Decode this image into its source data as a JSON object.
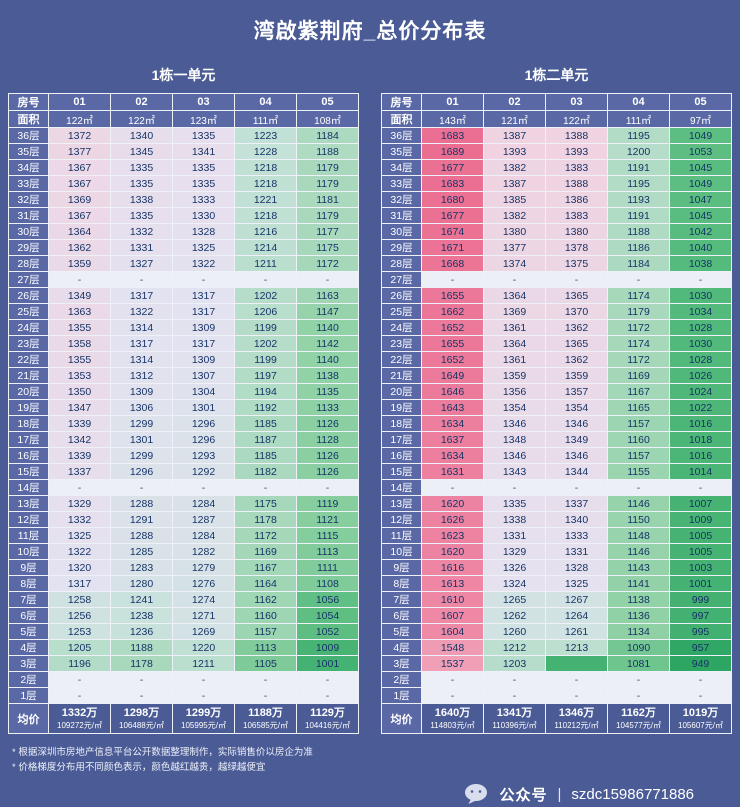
{
  "page": {
    "title": "湾啟紫荆府_总价分布表",
    "bg_color": "#4a5b95",
    "header_cell_color": "#5a69a6",
    "notes": [
      "* 根据深圳市房地产信息平台公开数据整理制作，实际销售价以房企为准",
      "* 价格梯度分布用不同颜色表示，颜色越红越贵，越绿越便宜"
    ],
    "footer": {
      "brand": "公众号",
      "separator": "|",
      "account": "szdc15986771886",
      "icon": "chat-bubble-icon"
    }
  },
  "color_scale": {
    "min_value": 949,
    "max_value": 1689,
    "stops": [
      {
        "t": 0.0,
        "color": "#2da563"
      },
      {
        "t": 0.12,
        "color": "#55bb7c"
      },
      {
        "t": 0.25,
        "color": "#8fd1a4"
      },
      {
        "t": 0.38,
        "color": "#c6e2da"
      },
      {
        "t": 0.5,
        "color": "#e4e2f0"
      },
      {
        "t": 0.62,
        "color": "#f2cfdd"
      },
      {
        "t": 0.8,
        "color": "#f09db6"
      },
      {
        "t": 1.0,
        "color": "#eb6d90"
      }
    ]
  },
  "chart_data": {
    "type": "table",
    "tables": [
      {
        "unit": "1栋一单元",
        "corner_top": "房号",
        "corner_bottom": "面积",
        "avg_label": "均价",
        "rooms": [
          "01",
          "02",
          "03",
          "04",
          "05"
        ],
        "areas": [
          "122㎡",
          "122㎡",
          "123㎡",
          "111㎡",
          "108㎡"
        ],
        "floors": [
          "36层",
          "35层",
          "34层",
          "33层",
          "32层",
          "31层",
          "30层",
          "29层",
          "28层",
          "27层",
          "26层",
          "25层",
          "24层",
          "23层",
          "22层",
          "21层",
          "20层",
          "19层",
          "18层",
          "17层",
          "16层",
          "15层",
          "14层",
          "13层",
          "12层",
          "11层",
          "10层",
          "9层",
          "8层",
          "7层",
          "6层",
          "5层",
          "4层",
          "3层",
          "2层",
          "1层"
        ],
        "rows": [
          [
            1372,
            1340,
            1335,
            1223,
            1184
          ],
          [
            1377,
            1345,
            1341,
            1228,
            1188
          ],
          [
            1367,
            1335,
            1335,
            1218,
            1179
          ],
          [
            1367,
            1335,
            1335,
            1218,
            1179
          ],
          [
            1369,
            1338,
            1333,
            1221,
            1181
          ],
          [
            1367,
            1335,
            1330,
            1218,
            1179
          ],
          [
            1364,
            1332,
            1328,
            1216,
            1177
          ],
          [
            1362,
            1331,
            1325,
            1214,
            1175
          ],
          [
            1359,
            1327,
            1322,
            1211,
            1172
          ],
          [
            "-",
            "-",
            "-",
            "-",
            "-"
          ],
          [
            1349,
            1317,
            1317,
            1202,
            1163
          ],
          [
            1363,
            1322,
            1317,
            1206,
            1147
          ],
          [
            1355,
            1314,
            1309,
            1199,
            1140
          ],
          [
            1358,
            1317,
            1317,
            1202,
            1142
          ],
          [
            1355,
            1314,
            1309,
            1199,
            1140
          ],
          [
            1353,
            1312,
            1307,
            1197,
            1138
          ],
          [
            1350,
            1309,
            1304,
            1194,
            1135
          ],
          [
            1347,
            1306,
            1301,
            1192,
            1133
          ],
          [
            1339,
            1299,
            1296,
            1185,
            1126
          ],
          [
            1342,
            1301,
            1296,
            1187,
            1128
          ],
          [
            1339,
            1299,
            1293,
            1185,
            1126
          ],
          [
            1337,
            1296,
            1292,
            1182,
            1126
          ],
          [
            "-",
            "-",
            "-",
            "-",
            "-"
          ],
          [
            1329,
            1288,
            1284,
            1175,
            1119
          ],
          [
            1332,
            1291,
            1287,
            1178,
            1121
          ],
          [
            1325,
            1288,
            1284,
            1172,
            1115
          ],
          [
            1322,
            1285,
            1282,
            1169,
            1113
          ],
          [
            1320,
            1283,
            1279,
            1167,
            1111
          ],
          [
            1317,
            1280,
            1276,
            1164,
            1108
          ],
          [
            1258,
            1241,
            1274,
            1162,
            1056
          ],
          [
            1256,
            1238,
            1271,
            1160,
            1054
          ],
          [
            1253,
            1236,
            1269,
            1157,
            1052
          ],
          [
            1205,
            1188,
            1220,
            1113,
            1009
          ],
          [
            1196,
            1178,
            1211,
            1105,
            1001
          ],
          [
            "-",
            "-",
            "-",
            "-",
            "-"
          ],
          [
            "-",
            "-",
            "-",
            "-",
            "-"
          ]
        ],
        "averages": [
          {
            "wan": "1332万",
            "per": "109272元/㎡"
          },
          {
            "wan": "1298万",
            "per": "106488元/㎡"
          },
          {
            "wan": "1299万",
            "per": "105995元/㎡"
          },
          {
            "wan": "1188万",
            "per": "106585元/㎡"
          },
          {
            "wan": "1129万",
            "per": "104416元/㎡"
          }
        ]
      },
      {
        "unit": "1栋二单元",
        "corner_top": "房号",
        "corner_bottom": "面积",
        "avg_label": "均价",
        "rooms": [
          "01",
          "02",
          "03",
          "04",
          "05"
        ],
        "areas": [
          "143㎡",
          "121㎡",
          "122㎡",
          "111㎡",
          "97㎡"
        ],
        "floors": [
          "36层",
          "35层",
          "34层",
          "33层",
          "32层",
          "31层",
          "30层",
          "29层",
          "28层",
          "27层",
          "26层",
          "25层",
          "24层",
          "23层",
          "22层",
          "21层",
          "20层",
          "19层",
          "18层",
          "17层",
          "16层",
          "15层",
          "14层",
          "13层",
          "12层",
          "11层",
          "10层",
          "9层",
          "8层",
          "7层",
          "6层",
          "5层",
          "4层",
          "3层",
          "2层",
          "1层"
        ],
        "rows": [
          [
            1683,
            1387,
            1388,
            1195,
            1049
          ],
          [
            1689,
            1393,
            1393,
            1200,
            1053
          ],
          [
            1677,
            1382,
            1383,
            1191,
            1045
          ],
          [
            1683,
            1387,
            1388,
            1195,
            1049
          ],
          [
            1680,
            1385,
            1386,
            1193,
            1047
          ],
          [
            1677,
            1382,
            1383,
            1191,
            1045
          ],
          [
            1674,
            1380,
            1380,
            1188,
            1042
          ],
          [
            1671,
            1377,
            1378,
            1186,
            1040
          ],
          [
            1668,
            1374,
            1375,
            1184,
            1038
          ],
          [
            "-",
            "-",
            "-",
            "-",
            "-"
          ],
          [
            1655,
            1364,
            1365,
            1174,
            1030
          ],
          [
            1662,
            1369,
            1370,
            1179,
            1034
          ],
          [
            1652,
            1361,
            1362,
            1172,
            1028
          ],
          [
            1655,
            1364,
            1365,
            1174,
            1030
          ],
          [
            1652,
            1361,
            1362,
            1172,
            1028
          ],
          [
            1649,
            1359,
            1359,
            1169,
            1026
          ],
          [
            1646,
            1356,
            1357,
            1167,
            1024
          ],
          [
            1643,
            1354,
            1354,
            1165,
            1022
          ],
          [
            1634,
            1346,
            1346,
            1157,
            1016
          ],
          [
            1637,
            1348,
            1349,
            1160,
            1018
          ],
          [
            1634,
            1346,
            1346,
            1157,
            1016
          ],
          [
            1631,
            1343,
            1344,
            1155,
            1014
          ],
          [
            "-",
            "-",
            "-",
            "-",
            "-"
          ],
          [
            1620,
            1335,
            1337,
            1146,
            1007
          ],
          [
            1626,
            1338,
            1340,
            1150,
            1009
          ],
          [
            1623,
            1331,
            1333,
            1148,
            1005
          ],
          [
            1620,
            1329,
            1331,
            1146,
            1005
          ],
          [
            1616,
            1326,
            1328,
            1143,
            1003
          ],
          [
            1613,
            1324,
            1325,
            1141,
            1001
          ],
          [
            1610,
            1265,
            1267,
            1138,
            999
          ],
          [
            1607,
            1262,
            1264,
            1136,
            997
          ],
          [
            1604,
            1260,
            1261,
            1134,
            995
          ],
          [
            1548,
            1212,
            1213,
            1090,
            957
          ],
          [
            1537,
            1203,
            {
              "v": "",
              "c": 1000
            },
            1081,
            949
          ],
          [
            "-",
            "-",
            "-",
            "-",
            "-"
          ],
          [
            "-",
            "-",
            "-",
            "-",
            "-"
          ]
        ],
        "averages": [
          {
            "wan": "1640万",
            "per": "114803元/㎡"
          },
          {
            "wan": "1341万",
            "per": "110396元/㎡"
          },
          {
            "wan": "1346万",
            "per": "110212元/㎡"
          },
          {
            "wan": "1162万",
            "per": "104577元/㎡"
          },
          {
            "wan": "1019万",
            "per": "105607元/㎡"
          }
        ]
      }
    ]
  }
}
